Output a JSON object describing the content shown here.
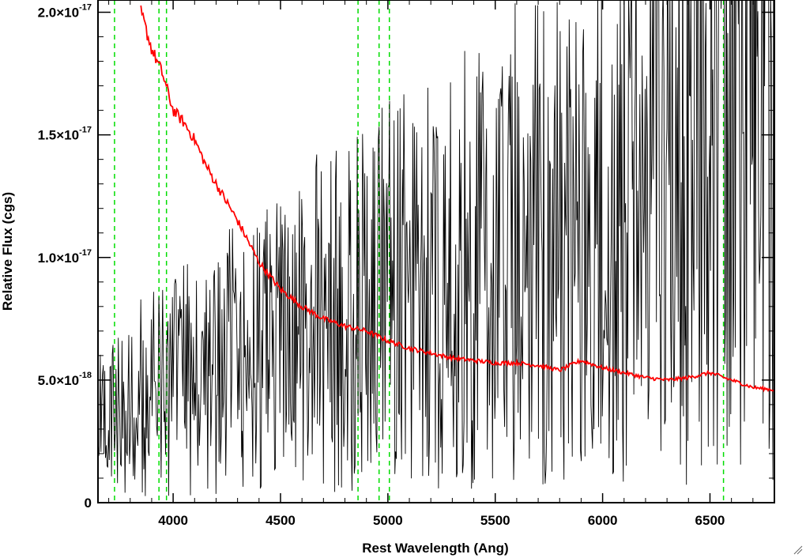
{
  "chart_data": {
    "type": "line",
    "xlabel": "Rest Wavelength (Ang)",
    "ylabel": "Relative Flux (cgs)",
    "xlim": [
      3650,
      6800
    ],
    "ylim": [
      0,
      2.05e-17
    ],
    "grid": false,
    "x_ticks": [
      {
        "value": 4000,
        "label": "4000"
      },
      {
        "value": 4500,
        "label": "4500"
      },
      {
        "value": 5000,
        "label": "5000"
      },
      {
        "value": 5500,
        "label": "5500"
      },
      {
        "value": 6000,
        "label": "6000"
      },
      {
        "value": 6500,
        "label": "6500"
      }
    ],
    "y_ticks": [
      {
        "value": 0,
        "label": "0",
        "exponent": ""
      },
      {
        "value": 5e-18,
        "label": "5.0×10",
        "exponent": "-18"
      },
      {
        "value": 1e-17,
        "label": "1.0×10",
        "exponent": "-17"
      },
      {
        "value": 1.5e-17,
        "label": "1.5×10",
        "exponent": "-17"
      },
      {
        "value": 2e-17,
        "label": "2.0×10",
        "exponent": "-17"
      }
    ],
    "reference_lines": {
      "color": "#00dd00",
      "style": "dashed",
      "x": [
        3727,
        3934,
        3969,
        4861,
        4959,
        5007,
        6563
      ]
    },
    "series": [
      {
        "color": "#000000",
        "style": "noisy spectrum",
        "x": [
          3650,
          3700,
          3750,
          3800,
          3850,
          3900,
          3950,
          4000,
          4100,
          4200,
          4300,
          4400,
          4500,
          4600,
          4700,
          4800,
          4900,
          5000,
          5100,
          5200,
          5300,
          5400,
          5500,
          5600,
          5700,
          5800,
          5900,
          6000,
          6100,
          6200,
          6300,
          6400,
          6500,
          6600,
          6700,
          6800
        ],
        "y": [
          3e-18,
          3.5e-18,
          4e-18,
          4e-18,
          4.5e-18,
          4.5e-18,
          4.5e-18,
          5e-18,
          5e-18,
          5.5e-18,
          6e-18,
          6e-18,
          6.5e-18,
          7e-18,
          7.5e-18,
          7.5e-18,
          8e-18,
          8.5e-18,
          9e-18,
          9e-18,
          9.5e-18,
          9.5e-18,
          1e-17,
          1.05e-17,
          1.05e-17,
          1.1e-17,
          1.1e-17,
          1.15e-17,
          1.2e-17,
          1.25e-17,
          1.3e-17,
          1.45e-17,
          1.65e-17,
          1.8e-17,
          1.75e-17,
          1.6e-17
        ]
      },
      {
        "color": "#ff0000",
        "style": "smooth model",
        "x": [
          3850,
          3900,
          3950,
          4000,
          4050,
          4100,
          4150,
          4200,
          4300,
          4400,
          4500,
          4600,
          4700,
          4800,
          4900,
          5000,
          5100,
          5200,
          5300,
          5400,
          5500,
          5600,
          5700,
          5800,
          5900,
          6000,
          6100,
          6200,
          6300,
          6400,
          6500,
          6600,
          6700,
          6800
        ],
        "y": [
          2e-17,
          1.85e-17,
          1.75e-17,
          1.6e-17,
          1.55e-17,
          1.48e-17,
          1.38e-17,
          1.3e-17,
          1.15e-17,
          9.8e-18,
          8.7e-18,
          8e-18,
          7.5e-18,
          7.2e-18,
          7e-18,
          6.6e-18,
          6.3e-18,
          6.1e-18,
          5.9e-18,
          5.8e-18,
          5.7e-18,
          5.7e-18,
          5.6e-18,
          5.4e-18,
          5.8e-18,
          5.5e-18,
          5.3e-18,
          5.1e-18,
          5e-18,
          5.1e-18,
          5.3e-18,
          5e-18,
          4.7e-18,
          4.6e-18
        ]
      }
    ]
  }
}
